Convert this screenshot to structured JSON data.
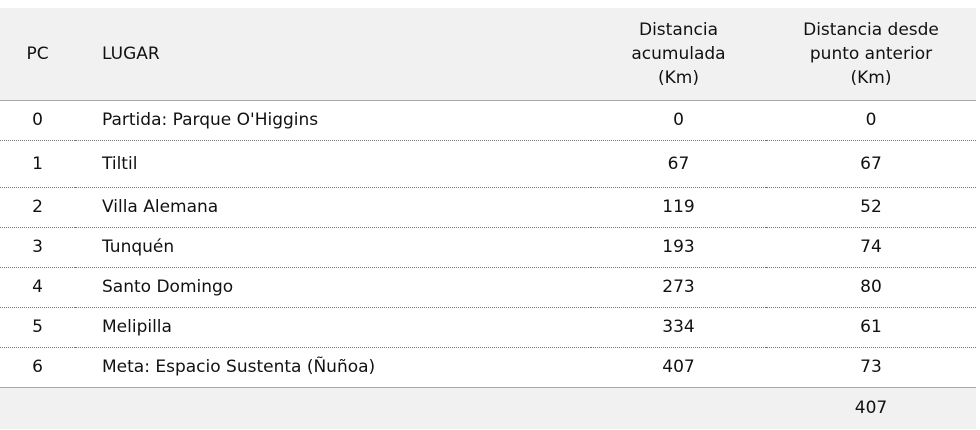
{
  "table": {
    "header": {
      "pc": "PC",
      "lugar": "LUGAR",
      "acumulada": [
        "Distancia",
        "acumulada",
        "(Km)"
      ],
      "anterior": [
        "Distancia desde",
        "punto anterior",
        "(Km)"
      ]
    },
    "rows": [
      [
        0,
        "Partida: Parque O'Higgins",
        0,
        0
      ],
      [
        1,
        "Tiltil",
        67,
        67
      ],
      [
        2,
        "Villa Alemana",
        119,
        52
      ],
      [
        3,
        "Tunquén",
        193,
        74
      ],
      [
        4,
        "Santo Domingo",
        273,
        80
      ],
      [
        5,
        "Melipilla",
        334,
        61
      ],
      [
        6,
        "Meta: Espacio Sustenta (Ñuñoa)",
        407,
        73
      ]
    ],
    "total": 407
  }
}
